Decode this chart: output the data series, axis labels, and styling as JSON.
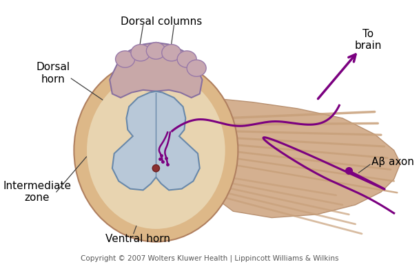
{
  "title": "",
  "copyright": "Copyright © 2007 Wolters Kluwer Health | Lippincott Williams & Wilkins",
  "labels": {
    "dorsal_columns": "Dorsal columns",
    "dorsal_horn": "Dorsal\nhorn",
    "intermediate_zone": "Intermediate\nzone",
    "ventral_horn": "Ventral horn",
    "to_brain": "To\nbrain",
    "ab_axon": "Aβ axon"
  },
  "colors": {
    "background": "#ffffff",
    "outer_cord": "#ddb990",
    "inner_gray": "#b8c8d8",
    "dorsal_col_fill": "#c8a090",
    "dorsal_col_top": "#d4b0a8",
    "nerve_roots": "#c8a882",
    "purple_pathway": "#7b0080",
    "label_lines": "#404040",
    "text": "#000000",
    "copyright_text": "#555555",
    "white_matter": "#e8d0b8",
    "central_canal": "#8b4040",
    "gray_matter": "#b8c8d8",
    "dorsal_col_bumps": "#c0a8b8"
  },
  "figsize": [
    6.08,
    3.97
  ],
  "dpi": 100
}
